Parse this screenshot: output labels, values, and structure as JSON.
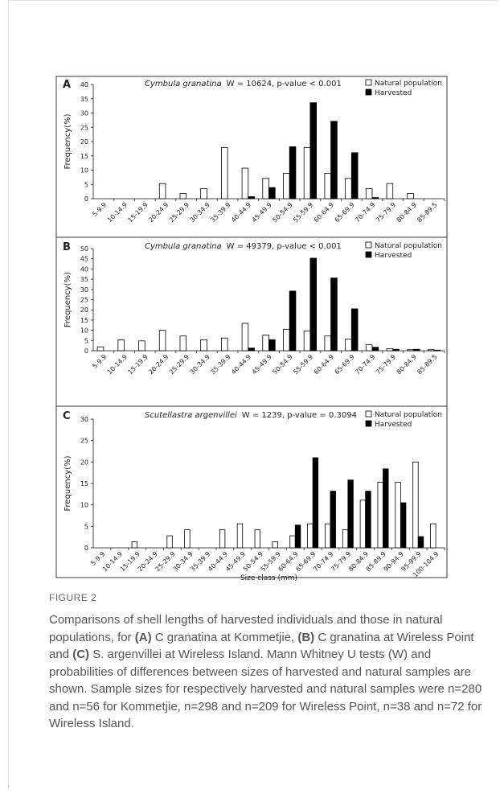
{
  "figure_label": "FIGURE 2",
  "caption": [
    {
      "text": "Comparisons of shell lengths of harvested individuals and those in natural populations, for ",
      "bold": false
    },
    {
      "text": "(A)",
      "bold": true
    },
    {
      "text": " C granatina at Kommetjie, ",
      "bold": false
    },
    {
      "text": "(B)",
      "bold": true
    },
    {
      "text": " C granatina at Wireless Point and ",
      "bold": false
    },
    {
      "text": "(C)",
      "bold": true
    },
    {
      "text": " S. argenvillei at Wireless Island. Mann Whitney U tests (W) and probabilities of differences between sizes of harvested and natural samples are shown. Sample sizes for respectively harvested and natural samples were n=280 and n=56 for Kommetjie, n=298 and n=209 for Wireless Point, n=38 and n=72 for Wireless Island.",
      "bold": false
    }
  ],
  "chart_data": [
    {
      "type": "bar",
      "panel_label": "A",
      "title": "Cymbula granatina",
      "subtitle": "W = 10624,  p-value < 0.001",
      "y_label": "Frequency(%)",
      "legend": "top-right",
      "categories": [
        "5-9.9",
        "10-14.9",
        "15-19.9",
        "20-24.9",
        "25-29.9",
        "30-34.9",
        "35-39.9",
        "40-44.9",
        "45-49.9",
        "50-54.9",
        "55-59.9",
        "60-64.9",
        "65-69.9",
        "70-74.9",
        "75-79.9",
        "80-84.9",
        "85-89.5"
      ],
      "series": [
        {
          "name": "Natural population",
          "color": "#ffffff",
          "values": [
            0,
            0,
            0,
            5.3,
            1.8,
            3.5,
            17.9,
            10.7,
            7.1,
            8.9,
            17.9,
            8.9,
            7.1,
            3.5,
            5.3,
            1.8,
            0
          ]
        },
        {
          "name": "Harvested",
          "color": "#000000",
          "values": [
            0,
            0,
            0,
            0,
            0,
            0,
            0,
            0.7,
            3.9,
            18.2,
            33.6,
            27.1,
            16.1,
            0.4,
            0,
            0,
            0
          ]
        }
      ],
      "ylim": [
        0,
        40
      ],
      "yticks": [
        0,
        5,
        10,
        15,
        20,
        25,
        30,
        35,
        40
      ]
    },
    {
      "type": "bar",
      "panel_label": "B",
      "title": "Cymbula granatina",
      "subtitle": "W = 49379,  p-value < 0.001",
      "y_label": "Frequency(%)",
      "legend": "top-right",
      "categories": [
        "5-9.9",
        "10-14.9",
        "15-19.9",
        "20-24.9",
        "25-29.9",
        "30-34.9",
        "35-39.9",
        "40-44.9",
        "45-49.9",
        "50-54.9",
        "55-59.9",
        "60-64.9",
        "65-69.9",
        "70-74.9",
        "75-79.9",
        "80-84.9",
        "85-89.5"
      ],
      "series": [
        {
          "name": "Natural population",
          "color": "#ffffff",
          "values": [
            1.9,
            5.3,
            4.8,
            10,
            7.2,
            5.3,
            6.2,
            13.4,
            7.7,
            10.5,
            9.6,
            7.2,
            5.7,
            2.9,
            1,
            0.5,
            0.5
          ]
        },
        {
          "name": "Harvested",
          "color": "#000000",
          "values": [
            0,
            0,
            0,
            0,
            0,
            0,
            0,
            1.3,
            5.4,
            29.2,
            45.3,
            35.6,
            20.5,
            1.7,
            0.7,
            0.7,
            0.3
          ]
        }
      ],
      "ylim": [
        0,
        50
      ],
      "yticks": [
        0,
        5,
        10,
        15,
        20,
        25,
        30,
        35,
        40,
        45,
        50
      ]
    },
    {
      "type": "bar",
      "panel_label": "C",
      "title": "Scutellastra argenvillei",
      "subtitle": "W = 1239,  p-value = 0.3094",
      "y_label": "Frequency(%)",
      "x_label": "Size class (mm)",
      "legend": "top-right",
      "categories": [
        "5-9.9",
        "10-14.9",
        "15-19.9",
        "20-24.9",
        "25-29.9",
        "30-34.9",
        "35-39.9",
        "40-44.9",
        "45-49.9",
        "50-54.9",
        "55-59.9",
        "60-64.9",
        "65-69.9",
        "70-74.9",
        "75-79.9",
        "80-84.9",
        "85-89.9",
        "90-94.9",
        "95-99.9",
        "100-104.9"
      ],
      "series": [
        {
          "name": "Natural population",
          "color": "#ffffff",
          "values": [
            0,
            0,
            1.4,
            0,
            2.8,
            4.2,
            0,
            4.2,
            5.6,
            4.2,
            1.4,
            2.8,
            5.6,
            5.6,
            4.2,
            11.1,
            15.3,
            15.3,
            20,
            5.6
          ]
        },
        {
          "name": "Harvested",
          "color": "#000000",
          "values": [
            0,
            0,
            0,
            0,
            0,
            0,
            0,
            0,
            0,
            0,
            0,
            5.3,
            21,
            13.2,
            15.8,
            13.2,
            18.4,
            10.5,
            2.6,
            0
          ]
        }
      ],
      "ylim": [
        0,
        30
      ],
      "yticks": [
        0,
        5,
        10,
        15,
        20,
        25,
        30
      ]
    }
  ]
}
